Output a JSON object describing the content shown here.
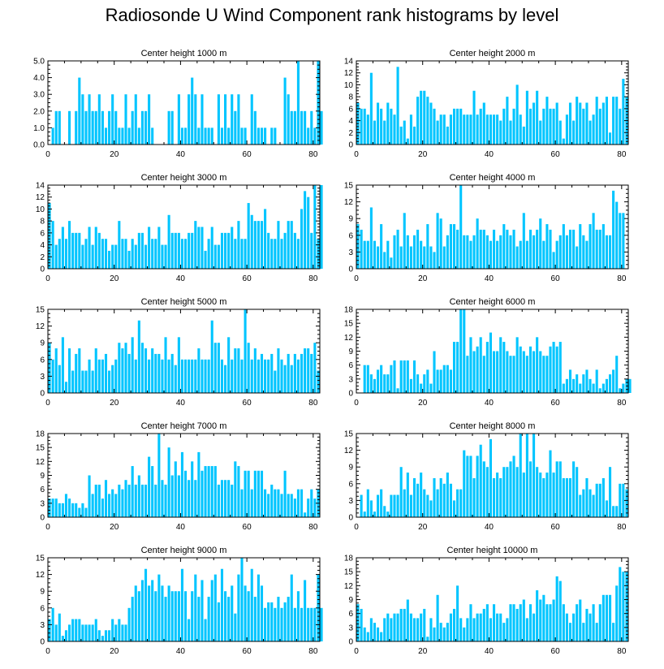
{
  "title": "Radiosonde U Wind Component rank histograms by level",
  "bar_color": "#00c5ff",
  "chart_data": [
    {
      "type": "bar",
      "title": "Center height 1000 m",
      "xlim": [
        0,
        82
      ],
      "ylim": [
        0,
        5
      ],
      "xticks": [
        "0",
        "20",
        "40",
        "60",
        "80"
      ],
      "yticks": [
        "0.0",
        "1.0",
        "2.0",
        "3.0",
        "4.0",
        "5.0"
      ],
      "values": [
        0,
        1,
        2,
        2,
        0,
        0,
        2,
        0,
        2,
        4,
        3,
        2,
        3,
        2,
        2,
        3,
        2,
        1,
        2,
        3,
        2,
        1,
        1,
        3,
        1,
        2,
        3,
        1,
        2,
        2,
        3,
        1,
        0,
        0,
        0,
        0,
        2,
        2,
        0,
        3,
        1,
        1,
        3,
        4,
        3,
        1,
        3,
        1,
        1,
        1,
        0,
        3,
        1,
        3,
        1,
        3,
        2,
        3,
        1,
        1,
        0,
        3,
        2,
        1,
        1,
        1,
        0,
        1,
        1,
        0,
        0,
        4,
        3,
        2,
        2,
        5,
        2,
        2,
        1,
        2,
        1,
        5,
        2
      ]
    },
    {
      "type": "bar",
      "title": "Center height 2000 m",
      "xlim": [
        0,
        82
      ],
      "ylim": [
        0,
        14
      ],
      "xticks": [
        "0",
        "20",
        "40",
        "60",
        "80"
      ],
      "yticks": [
        "0",
        "2",
        "4",
        "6",
        "8",
        "10",
        "12",
        "14"
      ],
      "values": [
        7,
        6,
        6,
        5,
        12,
        4,
        7,
        6,
        4,
        7,
        6,
        5,
        13,
        3,
        4,
        1,
        5,
        3,
        8,
        9,
        9,
        8,
        7,
        6,
        4,
        5,
        5,
        3,
        5,
        6,
        6,
        6,
        5,
        5,
        5,
        9,
        5,
        6,
        7,
        5,
        5,
        5,
        5,
        4,
        6,
        8,
        4,
        6,
        10,
        5,
        3,
        9,
        6,
        7,
        9,
        4,
        6,
        8,
        6,
        6,
        7,
        4,
        1,
        5,
        7,
        4,
        8,
        7,
        6,
        7,
        4,
        5,
        8,
        6,
        7,
        8,
        2,
        8,
        8,
        6,
        11,
        8,
        0
      ]
    },
    {
      "type": "bar",
      "title": "Center height 3000 m",
      "xlim": [
        0,
        82
      ],
      "ylim": [
        0,
        14
      ],
      "xticks": [
        "0",
        "20",
        "40",
        "60",
        "80"
      ],
      "yticks": [
        "0",
        "2",
        "4",
        "6",
        "8",
        "10",
        "12",
        "14"
      ],
      "values": [
        11,
        8,
        4,
        5,
        7,
        5,
        8,
        6,
        6,
        6,
        4,
        5,
        7,
        4,
        7,
        6,
        5,
        5,
        3,
        4,
        4,
        8,
        5,
        5,
        3,
        5,
        4,
        6,
        6,
        4,
        7,
        5,
        5,
        7,
        4,
        4,
        9,
        6,
        6,
        6,
        5,
        5,
        6,
        6,
        8,
        7,
        7,
        3,
        5,
        7,
        4,
        4,
        6,
        6,
        6,
        7,
        5,
        8,
        5,
        5,
        11,
        9,
        8,
        8,
        8,
        10,
        6,
        5,
        5,
        8,
        5,
        6,
        8,
        8,
        6,
        5,
        10,
        13,
        12,
        6,
        14,
        5,
        14
      ]
    },
    {
      "type": "bar",
      "title": "Center height 4000 m",
      "xlim": [
        0,
        82
      ],
      "ylim": [
        0,
        15
      ],
      "xticks": [
        "0",
        "20",
        "40",
        "60",
        "80"
      ],
      "yticks": [
        "0",
        "3",
        "6",
        "9",
        "12",
        "15"
      ],
      "values": [
        8,
        7,
        5,
        5,
        11,
        5,
        4,
        8,
        3,
        5,
        2,
        6,
        7,
        4,
        10,
        6,
        4,
        6,
        7,
        5,
        4,
        8,
        4,
        3,
        10,
        9,
        4,
        6,
        8,
        8,
        7,
        15,
        6,
        6,
        5,
        6,
        9,
        7,
        7,
        6,
        5,
        7,
        5,
        6,
        8,
        7,
        6,
        7,
        4,
        5,
        10,
        5,
        7,
        6,
        7,
        9,
        5,
        8,
        7,
        3,
        5,
        6,
        8,
        6,
        7,
        7,
        4,
        8,
        6,
        5,
        8,
        10,
        7,
        7,
        8,
        6,
        6,
        14,
        12,
        10,
        10,
        0,
        0
      ]
    },
    {
      "type": "bar",
      "title": "Center height 5000 m",
      "xlim": [
        0,
        82
      ],
      "ylim": [
        0,
        15
      ],
      "xticks": [
        "0",
        "20",
        "40",
        "60",
        "80"
      ],
      "yticks": [
        "0",
        "3",
        "6",
        "9",
        "12",
        "15"
      ],
      "values": [
        9,
        6,
        8,
        5,
        10,
        2,
        8,
        4,
        7,
        8,
        4,
        4,
        6,
        4,
        8,
        6,
        6,
        7,
        4,
        5,
        6,
        9,
        8,
        9,
        7,
        10,
        6,
        13,
        9,
        8,
        6,
        8,
        7,
        7,
        6,
        10,
        6,
        7,
        5,
        10,
        6,
        6,
        6,
        6,
        6,
        8,
        6,
        6,
        6,
        13,
        9,
        9,
        6,
        5,
        10,
        6,
        8,
        8,
        6,
        15,
        9,
        6,
        8,
        6,
        7,
        6,
        6,
        7,
        4,
        8,
        6,
        5,
        7,
        5,
        7,
        6,
        7,
        8,
        8,
        7,
        9,
        4,
        0
      ]
    },
    {
      "type": "bar",
      "title": "Center height 6000 m",
      "xlim": [
        0,
        82
      ],
      "ylim": [
        0,
        18
      ],
      "xticks": [
        "0",
        "20",
        "40",
        "60",
        "80"
      ],
      "yticks": [
        "0",
        "3",
        "6",
        "9",
        "12",
        "15",
        "18"
      ],
      "values": [
        0,
        0,
        6,
        6,
        4,
        3,
        5,
        6,
        4,
        4,
        6,
        7,
        1,
        7,
        7,
        7,
        3,
        7,
        4,
        2,
        4,
        5,
        2,
        9,
        5,
        5,
        6,
        6,
        5,
        11,
        11,
        18,
        18,
        8,
        12,
        9,
        10,
        12,
        8,
        11,
        13,
        9,
        9,
        12,
        11,
        9,
        8,
        8,
        12,
        10,
        9,
        8,
        10,
        9,
        12,
        9,
        8,
        8,
        10,
        11,
        10,
        11,
        2,
        3,
        5,
        3,
        4,
        2,
        4,
        5,
        3,
        2,
        5,
        1,
        2,
        3,
        4,
        5,
        8,
        1,
        2,
        3,
        3
      ]
    },
    {
      "type": "bar",
      "title": "Center height 7000 m",
      "xlim": [
        0,
        82
      ],
      "ylim": [
        0,
        18
      ],
      "xticks": [
        "0",
        "20",
        "40",
        "60",
        "80"
      ],
      "yticks": [
        "0",
        "3",
        "6",
        "9",
        "12",
        "15",
        "18"
      ],
      "values": [
        4,
        4,
        4,
        3,
        3,
        5,
        4,
        3,
        3,
        2,
        3,
        2,
        9,
        5,
        7,
        7,
        4,
        8,
        5,
        6,
        5,
        7,
        6,
        8,
        7,
        11,
        7,
        9,
        7,
        7,
        13,
        11,
        7,
        18,
        8,
        7,
        15,
        9,
        12,
        9,
        14,
        10,
        8,
        12,
        8,
        14,
        10,
        11,
        11,
        11,
        11,
        7,
        8,
        8,
        8,
        7,
        12,
        11,
        6,
        10,
        10,
        6,
        10,
        10,
        10,
        6,
        5,
        7,
        6,
        6,
        5,
        10,
        5,
        5,
        4,
        6,
        6,
        1,
        4,
        6,
        4,
        6,
        0
      ]
    },
    {
      "type": "bar",
      "title": "Center height 8000 m",
      "xlim": [
        0,
        82
      ],
      "ylim": [
        0,
        15
      ],
      "xticks": [
        "0",
        "20",
        "40",
        "60",
        "80"
      ],
      "yticks": [
        "0",
        "3",
        "6",
        "9",
        "12",
        "15"
      ],
      "values": [
        0,
        4,
        1,
        5,
        3,
        1,
        4,
        5,
        2,
        1,
        4,
        4,
        4,
        9,
        5,
        8,
        4,
        7,
        6,
        8,
        5,
        4,
        3,
        7,
        5,
        7,
        6,
        8,
        6,
        3,
        5,
        5,
        12,
        11,
        11,
        7,
        11,
        13,
        10,
        9,
        14,
        7,
        8,
        7,
        9,
        9,
        10,
        11,
        9,
        15,
        8,
        15,
        10,
        15,
        9,
        8,
        7,
        8,
        12,
        8,
        10,
        10,
        7,
        7,
        7,
        10,
        9,
        4,
        5,
        7,
        5,
        4,
        6,
        6,
        7,
        3,
        9,
        2,
        2,
        6,
        6,
        5,
        0
      ]
    },
    {
      "type": "bar",
      "title": "Center height 9000 m",
      "xlim": [
        0,
        82
      ],
      "ylim": [
        0,
        15
      ],
      "xticks": [
        "0",
        "20",
        "40",
        "60",
        "80"
      ],
      "yticks": [
        "0",
        "3",
        "6",
        "9",
        "12",
        "15"
      ],
      "values": [
        4,
        6,
        3,
        5,
        1,
        2,
        3,
        4,
        4,
        4,
        3,
        3,
        3,
        3,
        4,
        2,
        1,
        2,
        2,
        4,
        3,
        4,
        3,
        3,
        6,
        8,
        10,
        9,
        11,
        13,
        10,
        11,
        9,
        12,
        10,
        8,
        10,
        9,
        9,
        9,
        13,
        9,
        4,
        9,
        12,
        8,
        11,
        4,
        8,
        11,
        12,
        7,
        13,
        9,
        8,
        10,
        5,
        12,
        15,
        10,
        9,
        13,
        8,
        12,
        10,
        6,
        7,
        7,
        6,
        8,
        6,
        7,
        8,
        12,
        6,
        9,
        6,
        11,
        6,
        6,
        6,
        12,
        6
      ]
    },
    {
      "type": "bar",
      "title": "Center height 10000 m",
      "xlim": [
        0,
        82
      ],
      "ylim": [
        0,
        18
      ],
      "xticks": [
        "0",
        "20",
        "40",
        "60",
        "80"
      ],
      "yticks": [
        "0",
        "3",
        "6",
        "9",
        "12",
        "15",
        "18"
      ],
      "values": [
        8,
        7,
        3,
        2,
        5,
        4,
        3,
        2,
        5,
        6,
        5,
        6,
        6,
        7,
        7,
        9,
        6,
        5,
        5,
        6,
        7,
        1,
        5,
        3,
        10,
        4,
        3,
        4,
        6,
        7,
        12,
        5,
        3,
        5,
        8,
        5,
        6,
        6,
        7,
        8,
        5,
        8,
        6,
        6,
        4,
        5,
        8,
        8,
        7,
        8,
        9,
        5,
        8,
        6,
        11,
        9,
        10,
        8,
        8,
        9,
        14,
        13,
        8,
        6,
        4,
        6,
        8,
        9,
        4,
        7,
        6,
        8,
        4,
        8,
        10,
        10,
        10,
        4,
        12,
        16,
        15,
        15,
        0
      ]
    }
  ]
}
